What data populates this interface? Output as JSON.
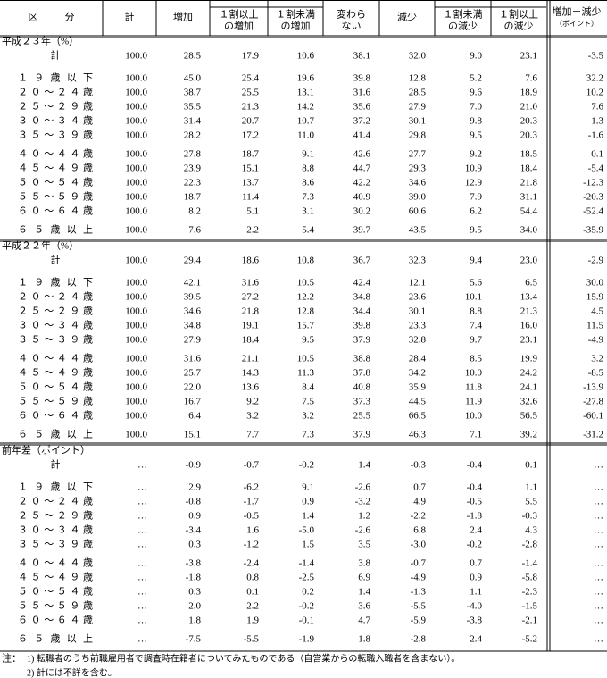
{
  "header": {
    "columns": [
      [
        "区分"
      ],
      [
        "計"
      ],
      [
        "増加"
      ],
      [
        "１割以上",
        "の増加"
      ],
      [
        "１割未満",
        "の増加"
      ],
      [
        "変わら",
        "ない"
      ],
      [
        "減少"
      ],
      [
        "１割未満",
        "の減少"
      ],
      [
        "１割以上",
        "の減少"
      ],
      [
        "増加－減少",
        "（ポイント）"
      ]
    ]
  },
  "sections": [
    {
      "title": "平成２３年（%）",
      "rows": [
        {
          "label": "計",
          "values": [
            "100.0",
            "28.5",
            "17.9",
            "10.6",
            "38.1",
            "32.0",
            "9.0",
            "23.1",
            "-3.5"
          ]
        },
        {
          "label": "１９歳以下",
          "values": [
            "100.0",
            "45.0",
            "25.4",
            "19.6",
            "39.8",
            "12.8",
            "5.2",
            "7.6",
            "32.2"
          ]
        },
        {
          "label": "２０～２４歳",
          "values": [
            "100.0",
            "38.7",
            "25.5",
            "13.1",
            "31.6",
            "28.5",
            "9.6",
            "18.9",
            "10.2"
          ]
        },
        {
          "label": "２５～２９歳",
          "values": [
            "100.0",
            "35.5",
            "21.3",
            "14.2",
            "35.6",
            "27.9",
            "7.0",
            "21.0",
            "7.6"
          ]
        },
        {
          "label": "３０～３４歳",
          "values": [
            "100.0",
            "31.4",
            "20.7",
            "10.7",
            "37.2",
            "30.1",
            "9.8",
            "20.3",
            "1.3"
          ]
        },
        {
          "label": "３５～３９歳",
          "values": [
            "100.0",
            "28.2",
            "17.2",
            "11.0",
            "41.4",
            "29.8",
            "9.5",
            "20.3",
            "-1.6"
          ]
        },
        {
          "label": "４０～４４歳",
          "values": [
            "100.0",
            "27.8",
            "18.7",
            "9.1",
            "42.6",
            "27.7",
            "9.2",
            "18.5",
            "0.1"
          ]
        },
        {
          "label": "４５～４９歳",
          "values": [
            "100.0",
            "23.9",
            "15.1",
            "8.8",
            "44.7",
            "29.3",
            "10.9",
            "18.4",
            "-5.4"
          ]
        },
        {
          "label": "５０～５４歳",
          "values": [
            "100.0",
            "22.3",
            "13.7",
            "8.6",
            "42.2",
            "34.6",
            "12.9",
            "21.8",
            "-12.3"
          ]
        },
        {
          "label": "５５～５９歳",
          "values": [
            "100.0",
            "18.7",
            "11.4",
            "7.3",
            "40.9",
            "39.0",
            "7.9",
            "31.1",
            "-20.3"
          ]
        },
        {
          "label": "６０～６４歳",
          "values": [
            "100.0",
            "8.2",
            "5.1",
            "3.1",
            "30.2",
            "60.6",
            "6.2",
            "54.4",
            "-52.4"
          ]
        },
        {
          "label": "６５歳以上",
          "values": [
            "100.0",
            "7.6",
            "2.2",
            "5.4",
            "39.7",
            "43.5",
            "9.5",
            "34.0",
            "-35.9"
          ]
        }
      ]
    },
    {
      "title": "平成２２年（%）",
      "rows": [
        {
          "label": "計",
          "values": [
            "100.0",
            "29.4",
            "18.6",
            "10.8",
            "36.7",
            "32.3",
            "9.4",
            "23.0",
            "-2.9"
          ]
        },
        {
          "label": "１９歳以下",
          "values": [
            "100.0",
            "42.1",
            "31.6",
            "10.5",
            "42.4",
            "12.1",
            "5.6",
            "6.5",
            "30.0"
          ]
        },
        {
          "label": "２０～２４歳",
          "values": [
            "100.0",
            "39.5",
            "27.2",
            "12.2",
            "34.8",
            "23.6",
            "10.1",
            "13.4",
            "15.9"
          ]
        },
        {
          "label": "２５～２９歳",
          "values": [
            "100.0",
            "34.6",
            "21.8",
            "12.8",
            "34.4",
            "30.1",
            "8.8",
            "21.3",
            "4.5"
          ]
        },
        {
          "label": "３０～３４歳",
          "values": [
            "100.0",
            "34.8",
            "19.1",
            "15.7",
            "39.8",
            "23.3",
            "7.4",
            "16.0",
            "11.5"
          ]
        },
        {
          "label": "３５～３９歳",
          "values": [
            "100.0",
            "27.9",
            "18.4",
            "9.5",
            "37.9",
            "32.8",
            "9.7",
            "23.1",
            "-4.9"
          ]
        },
        {
          "label": "４０～４４歳",
          "values": [
            "100.0",
            "31.6",
            "21.1",
            "10.5",
            "38.8",
            "28.4",
            "8.5",
            "19.9",
            "3.2"
          ]
        },
        {
          "label": "４５～４９歳",
          "values": [
            "100.0",
            "25.7",
            "14.3",
            "11.3",
            "37.8",
            "34.2",
            "10.0",
            "24.2",
            "-8.5"
          ]
        },
        {
          "label": "５０～５４歳",
          "values": [
            "100.0",
            "22.0",
            "13.6",
            "8.4",
            "40.8",
            "35.9",
            "11.8",
            "24.1",
            "-13.9"
          ]
        },
        {
          "label": "５５～５９歳",
          "values": [
            "100.0",
            "16.7",
            "9.2",
            "7.5",
            "37.3",
            "44.5",
            "11.9",
            "32.6",
            "-27.8"
          ]
        },
        {
          "label": "６０～６４歳",
          "values": [
            "100.0",
            "6.4",
            "3.2",
            "3.2",
            "25.5",
            "66.5",
            "10.0",
            "56.5",
            "-60.1"
          ]
        },
        {
          "label": "６５歳以上",
          "values": [
            "100.0",
            "15.1",
            "7.7",
            "7.3",
            "37.9",
            "46.3",
            "7.1",
            "39.2",
            "-31.2"
          ]
        }
      ]
    },
    {
      "title": "前年差（ポイント）",
      "rows": [
        {
          "label": "計",
          "values": [
            "…",
            "-0.9",
            "-0.7",
            "-0.2",
            "1.4",
            "-0.3",
            "-0.4",
            "0.1",
            "…"
          ]
        },
        {
          "label": "１９歳以下",
          "values": [
            "…",
            "2.9",
            "-6.2",
            "9.1",
            "-2.6",
            "0.7",
            "-0.4",
            "1.1",
            "…"
          ]
        },
        {
          "label": "２０～２４歳",
          "values": [
            "…",
            "-0.8",
            "-1.7",
            "0.9",
            "-3.2",
            "4.9",
            "-0.5",
            "5.5",
            "…"
          ]
        },
        {
          "label": "２５～２９歳",
          "values": [
            "…",
            "0.9",
            "-0.5",
            "1.4",
            "1.2",
            "-2.2",
            "-1.8",
            "-0.3",
            "…"
          ]
        },
        {
          "label": "３０～３４歳",
          "values": [
            "…",
            "-3.4",
            "1.6",
            "-5.0",
            "-2.6",
            "6.8",
            "2.4",
            "4.3",
            "…"
          ]
        },
        {
          "label": "３５～３９歳",
          "values": [
            "…",
            "0.3",
            "-1.2",
            "1.5",
            "3.5",
            "-3.0",
            "-0.2",
            "-2.8",
            "…"
          ]
        },
        {
          "label": "４０～４４歳",
          "values": [
            "…",
            "-3.8",
            "-2.4",
            "-1.4",
            "3.8",
            "-0.7",
            "0.7",
            "-1.4",
            "…"
          ]
        },
        {
          "label": "４５～４９歳",
          "values": [
            "…",
            "-1.8",
            "0.8",
            "-2.5",
            "6.9",
            "-4.9",
            "0.9",
            "-5.8",
            "…"
          ]
        },
        {
          "label": "５０～５４歳",
          "values": [
            "…",
            "0.3",
            "0.1",
            "0.2",
            "1.4",
            "-1.3",
            "1.1",
            "-2.3",
            "…"
          ]
        },
        {
          "label": "５５～５９歳",
          "values": [
            "…",
            "2.0",
            "2.2",
            "-0.2",
            "3.6",
            "-5.5",
            "-4.0",
            "-1.5",
            "…"
          ]
        },
        {
          "label": "６０～６４歳",
          "values": [
            "…",
            "1.8",
            "1.9",
            "-0.1",
            "4.7",
            "-5.9",
            "-3.8",
            "-2.1",
            "…"
          ]
        },
        {
          "label": "６５歳以上",
          "values": [
            "…",
            "-7.5",
            "-5.5",
            "-1.9",
            "1.8",
            "-2.8",
            "2.4",
            "-5.2",
            "…"
          ]
        }
      ]
    }
  ],
  "notes": {
    "label": "注：",
    "items": [
      "1) 転職者のうち前職雇用者で調査時在籍者についてみたものである（自営業からの転職入職者を含まない）。",
      "2) 計には不詳を含む。"
    ]
  }
}
